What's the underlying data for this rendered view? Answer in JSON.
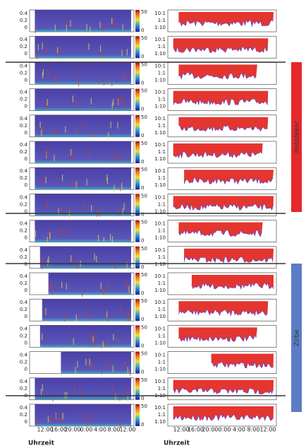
{
  "spectrogram": {
    "yticks": [
      "0.4",
      "0.2",
      "0"
    ],
    "colorbar_ticks": [
      "50",
      "0"
    ]
  },
  "ratio": {
    "yticks": [
      "10:1",
      "1:1",
      "1:10"
    ]
  },
  "x_axis": {
    "ticks": [
      "12:00",
      "16:00",
      "20:00",
      "0:00",
      "4:00",
      "8:00",
      "12:00"
    ],
    "label": "Uhrzeit"
  },
  "groups": [
    {
      "label": "Holzdekor"
    },
    {
      "label": "Zirbe"
    }
  ]
}
